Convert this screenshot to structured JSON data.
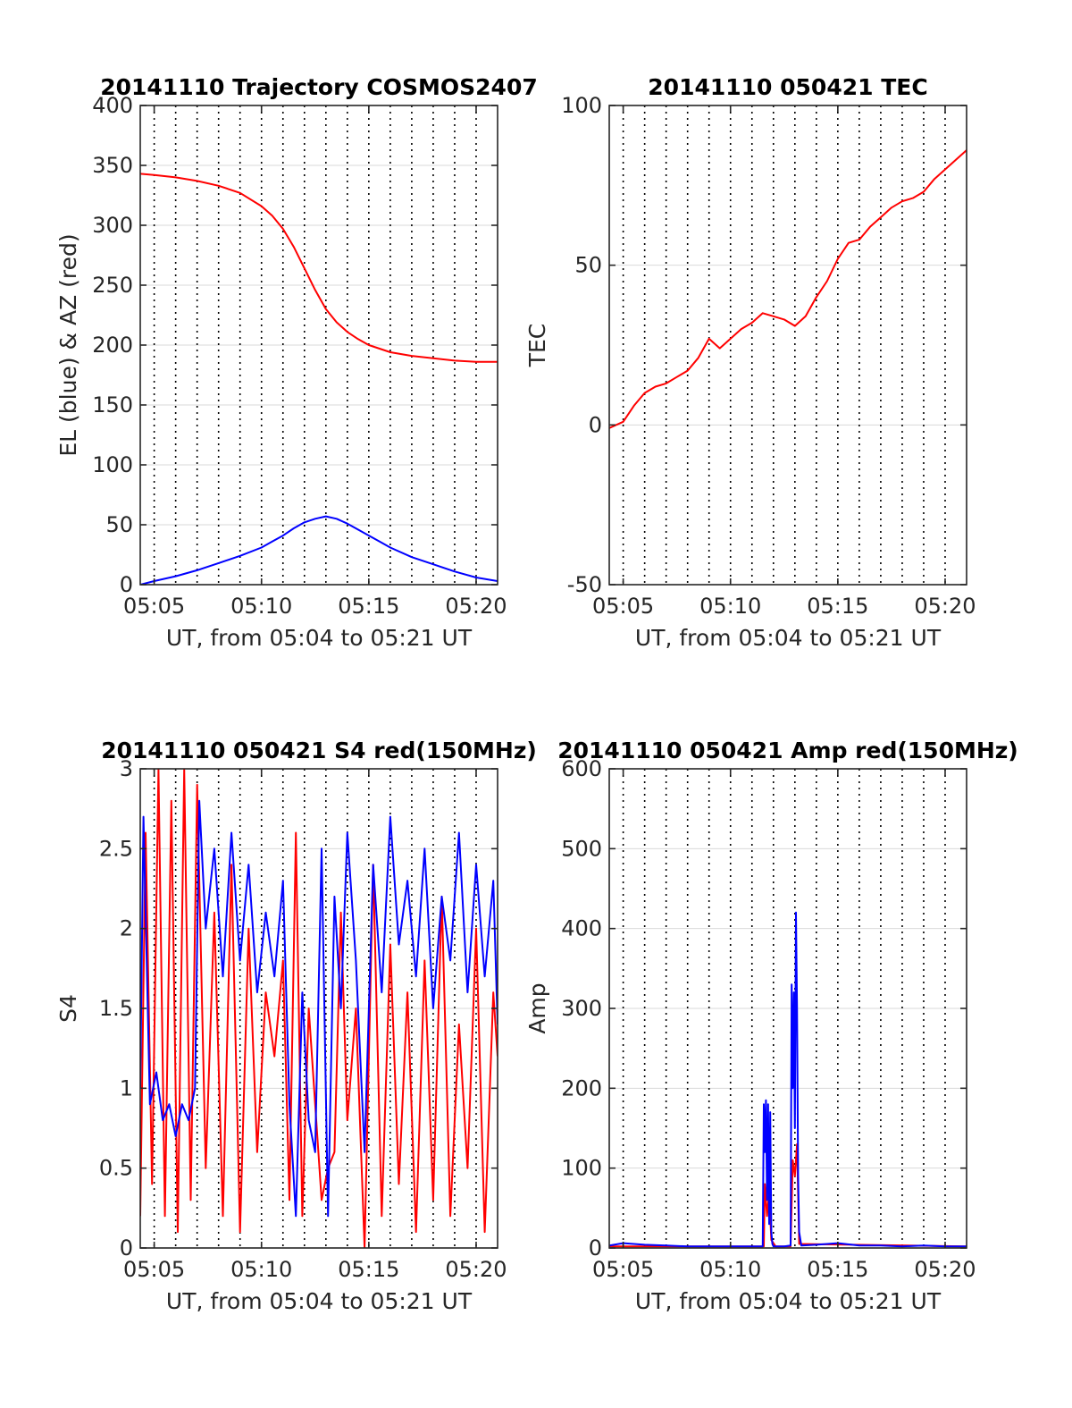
{
  "figure": {
    "colors": {
      "red": "#ff0000",
      "blue": "#0000ff",
      "grid": "#d9d9d9",
      "axis": "#262626"
    }
  },
  "chart_data": [
    {
      "type": "line",
      "title": "20141110 Trajectory COSMOS2407",
      "xlabel": "UT, from 05:04 to 05:21 UT",
      "ylabel": "EL (blue) & AZ (red)",
      "x_unit": "minutes of hour 05 UT",
      "xlim": [
        4.35,
        21.0
      ],
      "ylim": [
        0,
        400
      ],
      "xticks": [
        5,
        10,
        15,
        20
      ],
      "xtick_labels": [
        "05:05",
        "05:10",
        "05:15",
        "05:20"
      ],
      "yticks": [
        0,
        50,
        100,
        150,
        200,
        250,
        300,
        350,
        400
      ],
      "ytick_labels": [
        "0",
        "50",
        "100",
        "150",
        "200",
        "250",
        "300",
        "350",
        "400"
      ],
      "series": [
        {
          "color": "#ff0000",
          "x": [
            4.35,
            5,
            6,
            7,
            8,
            9,
            10,
            10.5,
            11,
            11.5,
            12,
            12.5,
            13,
            13.5,
            14,
            14.5,
            15,
            15.5,
            16,
            17,
            18,
            19,
            20,
            21
          ],
          "y": [
            343,
            342,
            340,
            337,
            333,
            327,
            316,
            308,
            297,
            282,
            264,
            246,
            230,
            219,
            211,
            205,
            200,
            197,
            194,
            191,
            189,
            187,
            186,
            186
          ]
        },
        {
          "color": "#0000ff",
          "x": [
            4.35,
            5,
            6,
            7,
            8,
            9,
            10,
            10.5,
            11,
            11.5,
            12,
            12.5,
            13,
            13.5,
            14,
            14.5,
            15,
            15.5,
            16,
            17,
            18,
            19,
            20,
            21
          ],
          "y": [
            0,
            3,
            7,
            12,
            18,
            24,
            31,
            36,
            41,
            47,
            52,
            55,
            57,
            55,
            51,
            46,
            41,
            36,
            31,
            23,
            17,
            11,
            6,
            3
          ]
        }
      ]
    },
    {
      "type": "line",
      "title": "20141110 050421 TEC",
      "xlabel": "UT, from 05:04 to 05:21 UT",
      "ylabel": "TEC",
      "x_unit": "minutes of hour 05 UT",
      "xlim": [
        4.35,
        21.0
      ],
      "ylim": [
        -50,
        100
      ],
      "xticks": [
        5,
        10,
        15,
        20
      ],
      "xtick_labels": [
        "05:05",
        "05:10",
        "05:15",
        "05:20"
      ],
      "yticks": [
        -50,
        0,
        50,
        100
      ],
      "ytick_labels": [
        "-50",
        "0",
        "50",
        "100"
      ],
      "series": [
        {
          "color": "#ff0000",
          "x": [
            4.35,
            5,
            5.5,
            6,
            6.5,
            7,
            7.5,
            8,
            8.5,
            9,
            9.5,
            10,
            10.5,
            11,
            11.5,
            12,
            12.5,
            13,
            13.5,
            14,
            14.5,
            15,
            15.5,
            16,
            16.5,
            17,
            17.5,
            18,
            18.5,
            19,
            19.5,
            20,
            20.5,
            21
          ],
          "y": [
            -1,
            1,
            6,
            10,
            12,
            13,
            15,
            17,
            21,
            27,
            24,
            27,
            30,
            32,
            35,
            34,
            33,
            31,
            34,
            40,
            45,
            52,
            57,
            58,
            62,
            65,
            68,
            70,
            71,
            73,
            77,
            80,
            83,
            86
          ]
        }
      ]
    },
    {
      "type": "line",
      "title": "20141110 050421 S4 red(150MHz)",
      "xlabel": "UT, from 05:04 to 05:21 UT",
      "ylabel": "S4",
      "x_unit": "minutes of hour 05 UT",
      "xlim": [
        4.35,
        21.0
      ],
      "ylim": [
        0,
        3
      ],
      "xticks": [
        5,
        10,
        15,
        20
      ],
      "xtick_labels": [
        "05:05",
        "05:10",
        "05:15",
        "05:20"
      ],
      "yticks": [
        0,
        0.5,
        1,
        1.5,
        2,
        2.5,
        3
      ],
      "ytick_labels": [
        "0",
        "0.5",
        "1",
        "1.5",
        "2",
        "2.5",
        "3"
      ],
      "series": [
        {
          "color": "#ff0000",
          "x": [
            4.35,
            4.6,
            4.9,
            5.2,
            5.5,
            5.8,
            6.1,
            6.4,
            6.7,
            7.0,
            7.4,
            7.8,
            8.2,
            8.6,
            9.0,
            9.4,
            9.8,
            10.2,
            10.6,
            11.0,
            11.3,
            11.6,
            11.9,
            12.2,
            12.5,
            12.8,
            13.1,
            13.4,
            13.7,
            14.0,
            14.4,
            14.8,
            15.2,
            15.6,
            16.0,
            16.4,
            16.8,
            17.2,
            17.6,
            18.0,
            18.4,
            18.8,
            19.2,
            19.6,
            20.0,
            20.4,
            20.8,
            21.0
          ],
          "y": [
            0.2,
            2.6,
            0.4,
            3.0,
            0.2,
            2.8,
            0.1,
            3.0,
            0.3,
            2.9,
            0.5,
            2.1,
            0.2,
            2.4,
            0.1,
            2.0,
            0.6,
            1.6,
            1.2,
            1.8,
            0.3,
            2.6,
            0.2,
            1.5,
            0.9,
            0.3,
            0.5,
            0.6,
            2.1,
            0.8,
            1.5,
            0.0,
            2.4,
            0.2,
            1.9,
            0.4,
            1.6,
            0.1,
            1.8,
            0.3,
            2.2,
            0.2,
            1.4,
            0.5,
            2.0,
            0.1,
            1.6,
            1.2
          ]
        },
        {
          "color": "#0000ff",
          "x": [
            4.35,
            4.5,
            4.8,
            5.1,
            5.4,
            5.7,
            6.0,
            6.3,
            6.6,
            6.9,
            7.1,
            7.4,
            7.8,
            8.2,
            8.6,
            9.0,
            9.4,
            9.8,
            10.2,
            10.6,
            11.0,
            11.3,
            11.6,
            11.9,
            12.2,
            12.5,
            12.8,
            13.1,
            13.4,
            13.7,
            14.0,
            14.4,
            14.8,
            15.2,
            15.6,
            16.0,
            16.4,
            16.8,
            17.2,
            17.6,
            18.0,
            18.4,
            18.8,
            19.2,
            19.6,
            20.0,
            20.4,
            20.8,
            21.0
          ],
          "y": [
            1.0,
            2.7,
            0.9,
            1.1,
            0.8,
            0.9,
            0.7,
            0.9,
            0.8,
            1.0,
            2.8,
            2.0,
            2.5,
            1.7,
            2.6,
            1.8,
            2.4,
            1.6,
            2.1,
            1.7,
            2.3,
            0.9,
            0.2,
            1.6,
            0.8,
            0.6,
            2.5,
            0.2,
            2.2,
            1.5,
            2.6,
            1.8,
            0.6,
            2.4,
            1.6,
            2.7,
            1.9,
            2.3,
            1.7,
            2.5,
            1.5,
            2.2,
            1.8,
            2.6,
            1.6,
            2.4,
            1.7,
            2.3,
            1.4
          ]
        }
      ]
    },
    {
      "type": "line",
      "title": "20141110 050421 Amp red(150MHz)",
      "xlabel": "UT, from 05:04 to 05:21 UT",
      "ylabel": "Amp",
      "x_unit": "minutes of hour 05 UT",
      "xlim": [
        4.35,
        21.0
      ],
      "ylim": [
        0,
        600
      ],
      "xticks": [
        5,
        10,
        15,
        20
      ],
      "xtick_labels": [
        "05:05",
        "05:10",
        "05:15",
        "05:20"
      ],
      "yticks": [
        0,
        100,
        200,
        300,
        400,
        500,
        600
      ],
      "ytick_labels": [
        "0",
        "100",
        "200",
        "300",
        "400",
        "500",
        "600"
      ],
      "series": [
        {
          "color": "#ff0000",
          "x": [
            4.35,
            11.55,
            11.6,
            11.7,
            11.8,
            11.9,
            12.1,
            12.8,
            12.9,
            13.0,
            13.1,
            13.2,
            21.0
          ],
          "y": [
            2,
            2,
            80,
            40,
            70,
            10,
            2,
            2,
            110,
            90,
            130,
            5,
            2
          ]
        },
        {
          "color": "#0000ff",
          "x": [
            4.35,
            5.0,
            6.0,
            7.0,
            8.0,
            9.0,
            10.0,
            11.0,
            11.5,
            11.55,
            11.6,
            11.65,
            11.7,
            11.75,
            11.8,
            11.85,
            11.9,
            11.95,
            12.0,
            12.5,
            12.8,
            12.85,
            12.9,
            12.95,
            13.0,
            13.05,
            13.1,
            13.15,
            13.2,
            13.3,
            14.0,
            15.0,
            16.0,
            17.0,
            18.0,
            19.0,
            20.0,
            21.0
          ],
          "y": [
            3,
            6,
            4,
            3,
            2,
            2,
            2,
            2,
            2,
            180,
            120,
            185,
            60,
            180,
            30,
            170,
            20,
            5,
            2,
            2,
            3,
            330,
            200,
            320,
            150,
            420,
            300,
            90,
            20,
            3,
            4,
            6,
            3,
            3,
            2,
            3,
            2,
            2
          ]
        }
      ]
    }
  ]
}
